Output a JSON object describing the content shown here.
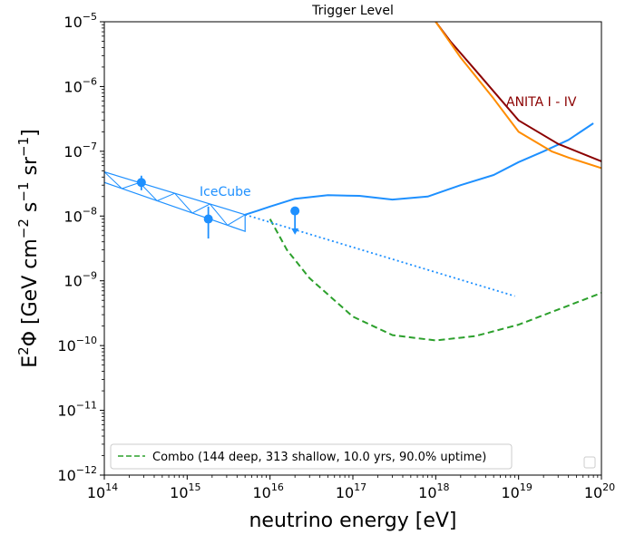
{
  "chart_data": {
    "type": "line",
    "title": "Trigger Level",
    "xlabel": "neutrino energy [eV]",
    "ylabel_parts": [
      "E",
      "2",
      "Φ [GeV cm",
      "−2",
      " s",
      "−1",
      " sr",
      "−1",
      "]"
    ],
    "x_scale": "log",
    "y_scale": "log",
    "xlim": [
      100000000000000.0,
      1e+20
    ],
    "ylim": [
      1e-12,
      1e-05
    ],
    "x_ticks": [
      {
        "value": 100000000000000.0,
        "base": "10",
        "exp": "14"
      },
      {
        "value": 1000000000000000.0,
        "base": "10",
        "exp": "15"
      },
      {
        "value": 1e+16,
        "base": "10",
        "exp": "16"
      },
      {
        "value": 1e+17,
        "base": "10",
        "exp": "17"
      },
      {
        "value": 1e+18,
        "base": "10",
        "exp": "18"
      },
      {
        "value": 1e+19,
        "base": "10",
        "exp": "19"
      },
      {
        "value": 1e+20,
        "base": "10",
        "exp": "20"
      }
    ],
    "y_ticks": [
      {
        "value": 1e-12,
        "base": "10",
        "exp": "−12"
      },
      {
        "value": 1e-11,
        "base": "10",
        "exp": "−11"
      },
      {
        "value": 1e-10,
        "base": "10",
        "exp": "−10"
      },
      {
        "value": 1e-09,
        "base": "10",
        "exp": "−9"
      },
      {
        "value": 1e-08,
        "base": "10",
        "exp": "−8"
      },
      {
        "value": 1e-07,
        "base": "10",
        "exp": "−7"
      },
      {
        "value": 1e-06,
        "base": "10",
        "exp": "−6"
      },
      {
        "value": 1e-05,
        "base": "10",
        "exp": "−5"
      }
    ],
    "grid": false,
    "legend": {
      "position": "lower-left",
      "entries": [
        {
          "label": "Combo (144 deep, 313 shallow, 10.0 yrs, 90.0% uptime)",
          "color": "#2ca02c",
          "style": "dashed"
        }
      ]
    },
    "series": [
      {
        "key": "combo",
        "name": "Combo (144 deep, 313 shallow, 10.0 yrs, 90.0% uptime)",
        "color": "#2ca02c",
        "style": "dashed",
        "points": [
          [
            1e+16,
            9e-09
          ],
          [
            1.6e+16,
            3e-09
          ],
          [
            3e+16,
            1.1e-09
          ],
          [
            1e+17,
            2.8e-10
          ],
          [
            3e+17,
            1.45e-10
          ],
          [
            1e+18,
            1.2e-10
          ],
          [
            3e+18,
            1.4e-10
          ],
          [
            1e+19,
            2.1e-10
          ],
          [
            3e+19,
            3.6e-10
          ],
          [
            1e+20,
            6.5e-10
          ]
        ]
      },
      {
        "key": "icecube_ehe",
        "color": "#1e90ff",
        "style": "solid",
        "points": [
          [
            5000000000000000.0,
            1.05e-08
          ],
          [
            7000000000000000.0,
            1.2e-08
          ],
          [
            1e+16,
            1.4e-08
          ],
          [
            2e+16,
            1.85e-08
          ],
          [
            5e+16,
            2.1e-08
          ],
          [
            1.2e+17,
            2.05e-08
          ],
          [
            3e+17,
            1.8e-08
          ],
          [
            8e+17,
            2e-08
          ],
          [
            2e+18,
            3e-08
          ],
          [
            5e+18,
            4.3e-08
          ],
          [
            1e+19,
            6.8e-08
          ],
          [
            2e+19,
            1e-07
          ],
          [
            4e+19,
            1.5e-07
          ],
          [
            8e+19,
            2.7e-07
          ]
        ]
      },
      {
        "key": "icecube_extrapolation",
        "color": "#1e90ff",
        "style": "dotted",
        "points": [
          [
            5000000000000000.0,
            1.05e-08
          ],
          [
            9e+18,
            5.8e-10
          ]
        ]
      },
      {
        "key": "anita",
        "color": "#8b0000",
        "style": "solid",
        "points": [
          [
            1e+18,
            1e-05
          ],
          [
            1.5e+18,
            5e-06
          ],
          [
            3e+18,
            1.8e-06
          ],
          [
            1e+19,
            3e-07
          ],
          [
            3e+19,
            1.3e-07
          ],
          [
            1e+20,
            7e-08
          ]
        ]
      },
      {
        "key": "orange_limit",
        "color": "#ff8c00",
        "style": "solid",
        "points": [
          [
            1e+18,
            1e-05
          ],
          [
            2e+18,
            2.8e-06
          ],
          [
            5e+18,
            6.5e-07
          ],
          [
            1e+19,
            2e-07
          ],
          [
            2.5e+19,
            1e-07
          ],
          [
            4e+19,
            8e-08
          ],
          [
            1e+20,
            5.5e-08
          ]
        ]
      }
    ],
    "icecube_band": {
      "color": "#1e90ff",
      "upper": [
        [
          100000000000000.0,
          4.8e-08
        ],
        [
          5000000000000000.0,
          1.05e-08
        ]
      ],
      "lower": [
        [
          100000000000000.0,
          3.3e-08
        ],
        [
          5000000000000000.0,
          5.8e-09
        ]
      ]
    },
    "data_points": [
      {
        "x": 280000000000000.0,
        "y": 3.3e-08,
        "yerr_low": 2.5e-08,
        "yerr_high": 4.2e-08,
        "color": "#1e90ff"
      },
      {
        "x": 1800000000000000.0,
        "y": 9e-09,
        "yerr_low": 4.5e-09,
        "yerr_high": 1.4e-08,
        "color": "#1e90ff"
      }
    ],
    "upper_limits": [
      {
        "x": 2e+16,
        "y": 1.2e-08,
        "arrow_to": 5.5e-09,
        "color": "#1e90ff"
      }
    ],
    "annotations": [
      {
        "key": "icecube",
        "text": "IceCube",
        "color": "#1e90ff"
      },
      {
        "key": "anita",
        "text": "ANITA I - IV",
        "color": "#8b0000"
      }
    ]
  }
}
